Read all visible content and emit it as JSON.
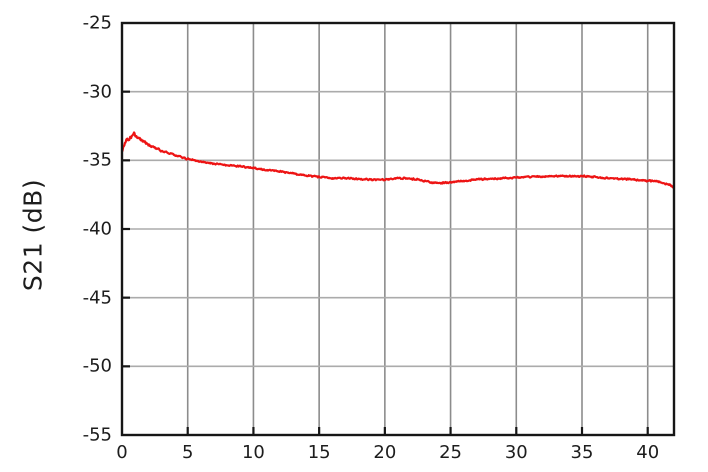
{
  "figure": {
    "background": "#ffffff",
    "axis_border_color": "#161616",
    "grid_color_vertical": "#8c8c8c",
    "grid_color_horizontal": "#ababab",
    "tick_mark_color": "#161616",
    "label_color": "#1d1d1d"
  },
  "chart_data": {
    "type": "line",
    "title": "",
    "xlabel": "",
    "ylabel": "S21 (dB)",
    "xlim": [
      0,
      42
    ],
    "ylim": [
      -55,
      -25
    ],
    "x_ticks": [
      0,
      5,
      10,
      15,
      20,
      25,
      30,
      35,
      40
    ],
    "y_ticks": [
      -25,
      -30,
      -35,
      -40,
      -45,
      -50,
      -55
    ],
    "grid": true,
    "legend": false,
    "series": [
      {
        "name": "S21",
        "color": "#ed1414",
        "line_width": 2.2,
        "noise_amplitude_db": 0.065,
        "start_noise_amplitude_db": 0.15,
        "points": [
          [
            0,
            -34.3
          ],
          [
            0.2,
            -33.9
          ],
          [
            0.35,
            -33.45
          ],
          [
            0.5,
            -33.6
          ],
          [
            0.7,
            -33.25
          ],
          [
            0.9,
            -33.1
          ],
          [
            1.1,
            -33.25
          ],
          [
            1.5,
            -33.55
          ],
          [
            2,
            -33.85
          ],
          [
            2.5,
            -34.1
          ],
          [
            3,
            -34.3
          ],
          [
            3.5,
            -34.45
          ],
          [
            4,
            -34.6
          ],
          [
            4.5,
            -34.75
          ],
          [
            5,
            -34.9
          ],
          [
            5.5,
            -35.0
          ],
          [
            6,
            -35.1
          ],
          [
            7,
            -35.25
          ],
          [
            8,
            -35.35
          ],
          [
            9,
            -35.45
          ],
          [
            10,
            -35.55
          ],
          [
            11,
            -35.7
          ],
          [
            12,
            -35.8
          ],
          [
            13,
            -35.95
          ],
          [
            14,
            -36.1
          ],
          [
            15,
            -36.2
          ],
          [
            16,
            -36.3
          ],
          [
            17,
            -36.3
          ],
          [
            18,
            -36.35
          ],
          [
            19,
            -36.4
          ],
          [
            20,
            -36.4
          ],
          [
            20.5,
            -36.35
          ],
          [
            21,
            -36.3
          ],
          [
            21.5,
            -36.3
          ],
          [
            22,
            -36.35
          ],
          [
            22.5,
            -36.4
          ],
          [
            23,
            -36.5
          ],
          [
            23.5,
            -36.6
          ],
          [
            24,
            -36.65
          ],
          [
            24.5,
            -36.65
          ],
          [
            25,
            -36.6
          ],
          [
            26,
            -36.5
          ],
          [
            27,
            -36.4
          ],
          [
            28,
            -36.35
          ],
          [
            29,
            -36.3
          ],
          [
            30,
            -36.25
          ],
          [
            31,
            -36.2
          ],
          [
            32,
            -36.2
          ],
          [
            33,
            -36.15
          ],
          [
            34,
            -36.15
          ],
          [
            35,
            -36.15
          ],
          [
            36,
            -36.2
          ],
          [
            37,
            -36.3
          ],
          [
            38,
            -36.35
          ],
          [
            39,
            -36.4
          ],
          [
            40,
            -36.5
          ],
          [
            40.5,
            -36.5
          ],
          [
            41,
            -36.6
          ],
          [
            41.5,
            -36.75
          ],
          [
            41.8,
            -36.85
          ],
          [
            42,
            -37.0
          ]
        ]
      }
    ]
  }
}
